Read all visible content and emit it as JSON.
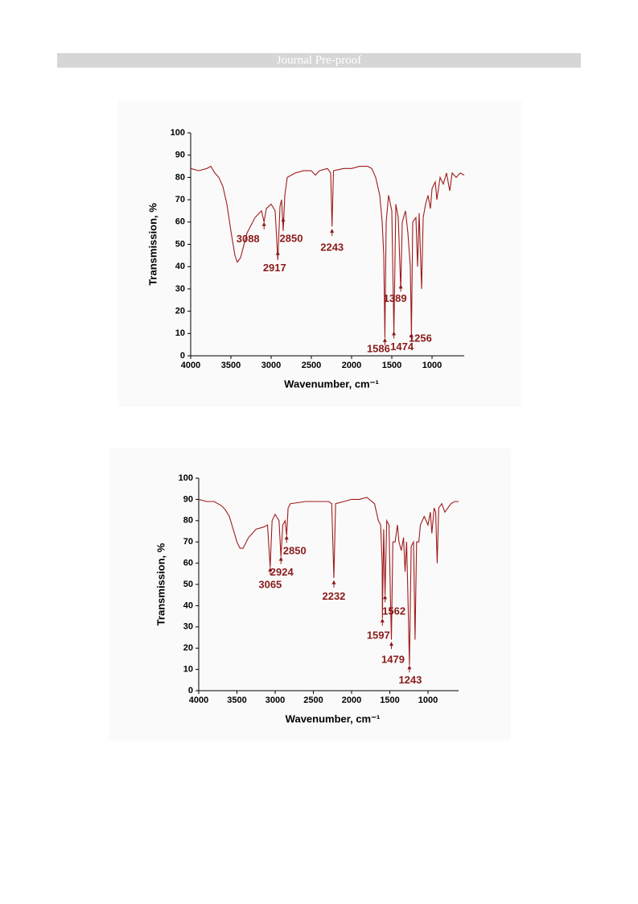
{
  "header": {
    "title": "Journal Pre-proof"
  },
  "chart_data": [
    {
      "type": "line",
      "color": "#a01c1c",
      "x_label": "Wavenumber, cm⁻¹",
      "y_label": "Transmission, %",
      "x": [
        4000,
        3900,
        3800,
        3750,
        3700,
        3650,
        3600,
        3550,
        3500,
        3450,
        3420,
        3380,
        3300,
        3200,
        3120,
        3088,
        3060,
        3000,
        2950,
        2917,
        2890,
        2870,
        2850,
        2830,
        2800,
        2700,
        2600,
        2500,
        2450,
        2400,
        2300,
        2260,
        2243,
        2225,
        2100,
        2000,
        1900,
        1800,
        1750,
        1700,
        1650,
        1620,
        1600,
        1586,
        1570,
        1540,
        1500,
        1474,
        1450,
        1420,
        1389,
        1370,
        1330,
        1300,
        1270,
        1256,
        1240,
        1200,
        1180,
        1160,
        1130,
        1110,
        1080,
        1050,
        1020,
        1000,
        960,
        940,
        900,
        860,
        820,
        780,
        750,
        700,
        650,
        600
      ],
      "values": [
        84,
        83,
        84,
        85,
        82,
        80,
        76,
        68,
        56,
        45,
        42,
        44,
        55,
        62,
        65,
        60,
        66,
        68,
        65,
        43,
        67,
        70,
        56,
        72,
        80,
        82,
        83,
        83,
        81,
        83,
        84,
        82,
        58,
        83,
        84,
        84,
        85,
        85,
        84,
        80,
        72,
        60,
        45,
        8,
        60,
        72,
        65,
        10,
        68,
        62,
        30,
        60,
        65,
        55,
        40,
        9,
        60,
        62,
        40,
        64,
        30,
        62,
        68,
        72,
        66,
        75,
        78,
        70,
        80,
        77,
        82,
        74,
        82,
        80,
        82,
        81
      ],
      "xlim": [
        4000,
        600
      ],
      "ylim": [
        0,
        100
      ],
      "xticks": [
        4000,
        3500,
        3000,
        2500,
        2000,
        1500,
        1000
      ],
      "yticks": [
        0,
        10,
        20,
        30,
        40,
        50,
        60,
        70,
        80,
        90,
        100
      ],
      "annotations": [
        {
          "label": "3088",
          "x": 3088,
          "y": 60
        },
        {
          "label": "2917",
          "x": 2917,
          "y": 47
        },
        {
          "label": "2850",
          "x": 2850,
          "y": 62
        },
        {
          "label": "2243",
          "x": 2243,
          "y": 57
        },
        {
          "label": "1586",
          "x": 1586,
          "y": 8
        },
        {
          "label": "1474",
          "x": 1474,
          "y": 11
        },
        {
          "label": "1389",
          "x": 1389,
          "y": 32
        },
        {
          "label": "1256",
          "x": 1256,
          "y": 10
        }
      ]
    },
    {
      "type": "line",
      "color": "#a01c1c",
      "x_label": "Wavenumber, cm⁻¹",
      "y_label": "Transmission, %",
      "x": [
        4000,
        3900,
        3800,
        3700,
        3650,
        3600,
        3550,
        3500,
        3460,
        3420,
        3350,
        3250,
        3150,
        3100,
        3065,
        3040,
        3000,
        2950,
        2924,
        2900,
        2870,
        2850,
        2830,
        2800,
        2600,
        2500,
        2400,
        2300,
        2260,
        2232,
        2210,
        2100,
        2000,
        1900,
        1800,
        1700,
        1650,
        1620,
        1600,
        1597,
        1580,
        1562,
        1540,
        1510,
        1490,
        1479,
        1460,
        1430,
        1400,
        1380,
        1350,
        1320,
        1300,
        1280,
        1260,
        1243,
        1220,
        1190,
        1170,
        1150,
        1120,
        1100,
        1050,
        1000,
        970,
        950,
        920,
        900,
        880,
        860,
        820,
        780,
        700,
        650,
        600
      ],
      "values": [
        90,
        89,
        89,
        87,
        85,
        82,
        76,
        70,
        67,
        67,
        72,
        76,
        77,
        78,
        58,
        80,
        83,
        80,
        63,
        78,
        80,
        73,
        86,
        88,
        89,
        89,
        89,
        89,
        88,
        53,
        88,
        89,
        90,
        90,
        91,
        88,
        80,
        78,
        60,
        34,
        76,
        45,
        80,
        78,
        40,
        24,
        70,
        70,
        78,
        70,
        66,
        72,
        56,
        70,
        40,
        12,
        68,
        70,
        24,
        70,
        70,
        78,
        82,
        78,
        84,
        74,
        86,
        84,
        60,
        86,
        88,
        84,
        88,
        89,
        89
      ],
      "xlim": [
        4000,
        600
      ],
      "ylim": [
        0,
        100
      ],
      "xticks": [
        4000,
        3500,
        3000,
        2500,
        2000,
        1500,
        1000
      ],
      "yticks": [
        0,
        10,
        20,
        30,
        40,
        50,
        60,
        70,
        80,
        90,
        100
      ],
      "annotations": [
        {
          "label": "3065",
          "x": 3065,
          "y": 58
        },
        {
          "label": "2924",
          "x": 2924,
          "y": 63
        },
        {
          "label": "2850",
          "x": 2850,
          "y": 73
        },
        {
          "label": "2232",
          "x": 2232,
          "y": 52
        },
        {
          "label": "1597",
          "x": 1597,
          "y": 34
        },
        {
          "label": "1562",
          "x": 1562,
          "y": 45
        },
        {
          "label": "1479",
          "x": 1479,
          "y": 23
        },
        {
          "label": "1243",
          "x": 1243,
          "y": 12
        }
      ]
    }
  ]
}
